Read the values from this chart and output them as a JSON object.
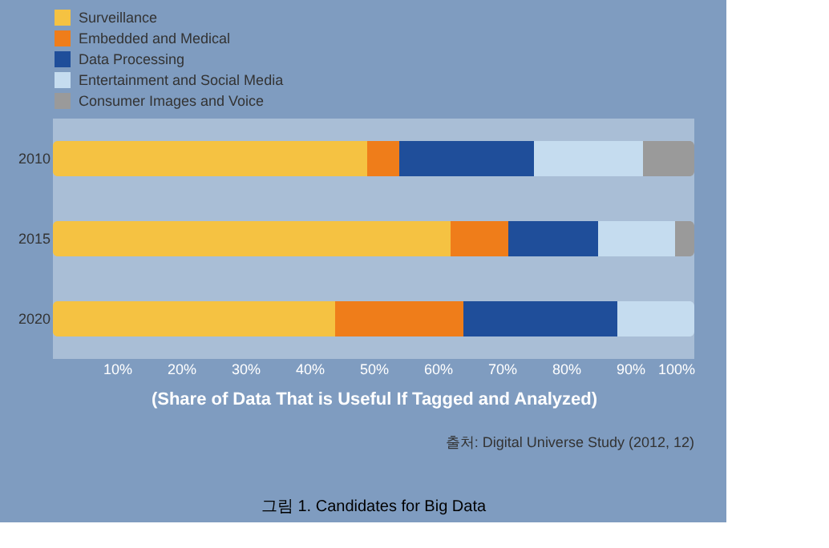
{
  "chart_data": {
    "type": "bar",
    "orientation": "horizontal",
    "stacked": true,
    "title": "그림 1. Candidates for Big Data",
    "xlabel": "(Share of Data That is Useful If Tagged and Analyzed)",
    "annotations": [
      "출처: Digital Universe Study (2012, 12)"
    ],
    "categories": [
      "2010",
      "2015",
      "2020"
    ],
    "series": [
      {
        "name": "Surveillance",
        "color": "#f5c242",
        "values": [
          49,
          62,
          44
        ]
      },
      {
        "name": "Embedded and Medical",
        "color": "#ef7d1a",
        "values": [
          5,
          9,
          20
        ]
      },
      {
        "name": "Data Processing",
        "color": "#1f4e9a",
        "values": [
          21,
          14,
          24
        ]
      },
      {
        "name": "Entertainment and Social Media",
        "color": "#c5dcef",
        "values": [
          17,
          12,
          12
        ]
      },
      {
        "name": "Consumer Images and Voice",
        "color": "#9a9a9a",
        "values": [
          8,
          3,
          0
        ]
      }
    ],
    "xlim": [
      0,
      100
    ],
    "xticks": [
      {
        "value": 10,
        "label": "10%"
      },
      {
        "value": 20,
        "label": "20%"
      },
      {
        "value": 30,
        "label": "30%"
      },
      {
        "value": 40,
        "label": "40%"
      },
      {
        "value": 50,
        "label": "50%"
      },
      {
        "value": 60,
        "label": "60%"
      },
      {
        "value": 70,
        "label": "70%"
      },
      {
        "value": 80,
        "label": "80%"
      },
      {
        "value": 90,
        "label": "90%"
      },
      {
        "value": 100,
        "label": "100%"
      }
    ],
    "legend": "top",
    "grid": false
  }
}
